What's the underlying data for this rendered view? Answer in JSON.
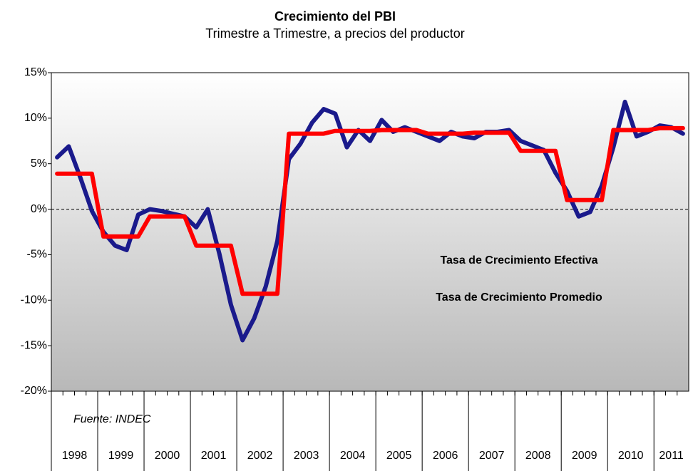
{
  "chart_data": {
    "type": "line",
    "title": "Crecimiento del PBI",
    "subtitle": "Trimestre a Trimestre, a precios del productor",
    "source": "Fuente: INDEC",
    "groups": [
      {
        "label": "1998",
        "count": 4
      },
      {
        "label": "1999",
        "count": 4
      },
      {
        "label": "2000",
        "count": 4
      },
      {
        "label": "2001",
        "count": 4
      },
      {
        "label": "2002",
        "count": 4
      },
      {
        "label": "2003",
        "count": 4
      },
      {
        "label": "2004",
        "count": 4
      },
      {
        "label": "2005",
        "count": 4
      },
      {
        "label": "2006",
        "count": 4
      },
      {
        "label": "2007",
        "count": 4
      },
      {
        "label": "2008",
        "count": 4
      },
      {
        "label": "2009",
        "count": 4
      },
      {
        "label": "2010",
        "count": 4
      },
      {
        "label": "2011",
        "count": 3
      }
    ],
    "series": [
      {
        "name": "Tasa de Crecimiento Efectiva",
        "color": "#1a1a8c",
        "values": [
          5.7,
          6.9,
          3.5,
          -0.2,
          -2.5,
          -4.0,
          -4.5,
          -0.6,
          0.0,
          -0.2,
          -0.5,
          -0.8,
          -2.0,
          0.0,
          -4.9,
          -10.5,
          -14.4,
          -12.0,
          -8.5,
          -3.5,
          5.5,
          7.2,
          9.5,
          11.0,
          10.5,
          6.8,
          8.7,
          7.5,
          9.8,
          8.5,
          9.0,
          8.5,
          8.0,
          7.5,
          8.5,
          8.0,
          7.8,
          8.5,
          8.5,
          8.7,
          7.5,
          7.0,
          6.5,
          4.0,
          2.0,
          -0.8,
          -0.3,
          2.6,
          6.8,
          11.8,
          8.0,
          8.5,
          9.2,
          9.0,
          8.3
        ]
      },
      {
        "name": "Tasa de Crecimiento Promedio",
        "color": "#ff0000",
        "values": [
          3.9,
          3.9,
          3.9,
          3.9,
          -3.0,
          -3.0,
          -3.0,
          -3.0,
          -0.8,
          -0.8,
          -0.8,
          -0.8,
          -4.0,
          -4.0,
          -4.0,
          -4.0,
          -9.3,
          -9.3,
          -9.3,
          -9.3,
          8.3,
          8.3,
          8.3,
          8.3,
          8.6,
          8.6,
          8.6,
          8.6,
          8.7,
          8.7,
          8.7,
          8.7,
          8.3,
          8.3,
          8.3,
          8.3,
          8.4,
          8.4,
          8.4,
          8.4,
          6.4,
          6.4,
          6.4,
          6.4,
          1.0,
          1.0,
          1.0,
          1.0,
          8.7,
          8.7,
          8.7,
          8.7,
          8.9,
          8.9,
          8.9
        ]
      }
    ],
    "ylim": [
      -20,
      15
    ],
    "yticks": [
      {
        "value": -20,
        "label": "-20%"
      },
      {
        "value": -15,
        "label": "-15%"
      },
      {
        "value": -10,
        "label": "-10%"
      },
      {
        "value": -5,
        "label": "-5%"
      },
      {
        "value": 0,
        "label": "0%"
      },
      {
        "value": 5,
        "label": "5%"
      },
      {
        "value": 10,
        "label": "10%"
      },
      {
        "value": 15,
        "label": "15%"
      }
    ]
  }
}
